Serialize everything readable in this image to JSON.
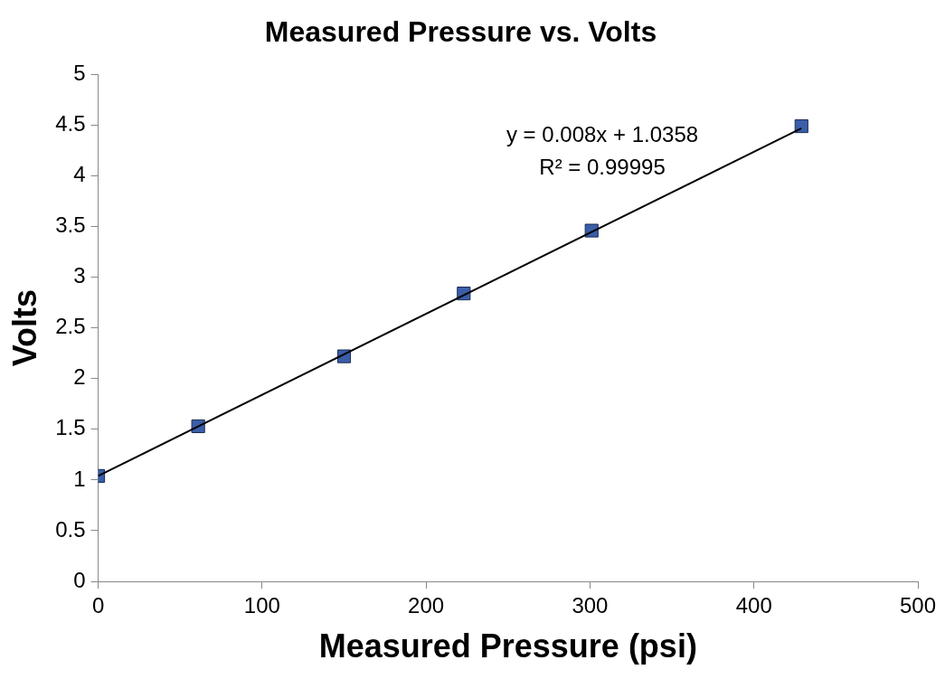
{
  "chart_data": {
    "type": "scatter",
    "title": "Measured Pressure vs. Volts",
    "xlabel": "Measured Pressure (psi)",
    "ylabel": "Volts",
    "xlim": [
      0,
      500
    ],
    "xticks": [
      0,
      100,
      200,
      300,
      400,
      500
    ],
    "ylim": [
      0,
      5
    ],
    "yticks": [
      0,
      0.5,
      1,
      1.5,
      2,
      2.5,
      3,
      3.5,
      4,
      4.5,
      5
    ],
    "grid": false,
    "legend": false,
    "annotations": [
      "y = 0.008x + 1.0358",
      "R² = 0.99995"
    ],
    "series": [
      {
        "marker": "square",
        "color": "#3a5ea8",
        "x": [
          0,
          61,
          150,
          223,
          301,
          429
        ],
        "values": [
          1.04,
          1.53,
          2.22,
          2.84,
          3.46,
          4.49
        ]
      },
      {
        "type": "line",
        "marker": "none",
        "color": "#000000",
        "x": [
          0,
          429
        ],
        "values": [
          1.04,
          4.47
        ]
      }
    ]
  }
}
